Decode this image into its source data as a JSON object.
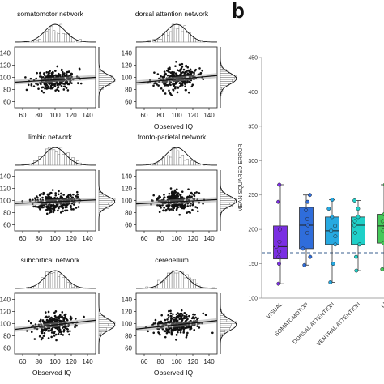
{
  "panel_b_letter": "b",
  "chart_data": [
    {
      "type": "scatter",
      "title": "somatomotor network",
      "xlabel": "",
      "xticks": [
        60,
        80,
        100,
        120,
        140
      ],
      "yticks": [
        60,
        80,
        100,
        120,
        140
      ],
      "xlim": [
        50,
        150
      ],
      "ylim": [
        50,
        150
      ],
      "fit": {
        "slope": 0.08,
        "intercept": 88
      },
      "center": [
        100,
        96
      ],
      "spread": [
        13,
        8
      ],
      "n": 260,
      "seed": 11
    },
    {
      "type": "scatter",
      "title": "dorsal attention network",
      "xlabel": "Observed IQ",
      "xticks": [
        60,
        80,
        100,
        120,
        140
      ],
      "yticks": [
        60,
        80,
        100,
        120,
        140
      ],
      "xlim": [
        50,
        150
      ],
      "ylim": [
        50,
        150
      ],
      "fit": {
        "slope": 0.12,
        "intercept": 85
      },
      "center": [
        100,
        98
      ],
      "spread": [
        13,
        9
      ],
      "n": 260,
      "seed": 23
    },
    {
      "type": "scatter",
      "title": "limbic network",
      "xlabel": "",
      "xticks": [
        60,
        80,
        100,
        120,
        140
      ],
      "yticks": [
        60,
        80,
        100,
        120,
        140
      ],
      "xlim": [
        50,
        150
      ],
      "ylim": [
        50,
        150
      ],
      "fit": {
        "slope": 0.06,
        "intercept": 92
      },
      "center": [
        100,
        98
      ],
      "spread": [
        13,
        8
      ],
      "n": 260,
      "seed": 37
    },
    {
      "type": "scatter",
      "title": "fronto-parietal network",
      "xlabel": "",
      "xticks": [
        60,
        80,
        100,
        120,
        140
      ],
      "yticks": [
        60,
        80,
        100,
        120,
        140
      ],
      "xlim": [
        50,
        150
      ],
      "ylim": [
        50,
        150
      ],
      "fit": {
        "slope": 0.07,
        "intercept": 91
      },
      "center": [
        100,
        99
      ],
      "spread": [
        13,
        8
      ],
      "n": 260,
      "seed": 41
    },
    {
      "type": "scatter",
      "title": "subcortical network",
      "xlabel": "Observed IQ",
      "xticks": [
        60,
        80,
        100,
        120,
        140
      ],
      "yticks": [
        60,
        80,
        100,
        120,
        140
      ],
      "xlim": [
        50,
        150
      ],
      "ylim": [
        50,
        150
      ],
      "fit": {
        "slope": 0.15,
        "intercept": 83
      },
      "center": [
        100,
        98
      ],
      "spread": [
        13,
        9
      ],
      "n": 260,
      "seed": 53
    },
    {
      "type": "scatter",
      "title": "cerebellum",
      "xlabel": "Observed IQ",
      "xticks": [
        60,
        80,
        100,
        120,
        140
      ],
      "yticks": [
        60,
        80,
        100,
        120,
        140
      ],
      "xlim": [
        50,
        150
      ],
      "ylim": [
        50,
        150
      ],
      "fit": {
        "slope": 0.14,
        "intercept": 84
      },
      "center": [
        100,
        98
      ],
      "spread": [
        13,
        9
      ],
      "n": 260,
      "seed": 67
    },
    {
      "type": "box",
      "ylabel": "MEAN SQUARED ERROR",
      "ylim": [
        100,
        450
      ],
      "yticks": [
        100,
        150,
        200,
        250,
        300,
        350,
        400,
        450
      ],
      "reference_line": 166,
      "categories": [
        "VISUAL",
        "SOMATOMOTOR",
        "DORSAL ATTENTION",
        "VENTRAL ATTENTION",
        "LI"
      ],
      "colors": [
        "#7b2fe3",
        "#2f6ddb",
        "#27a9e1",
        "#1fd0c8",
        "#45c95a"
      ],
      "boxes": [
        {
          "min": 121,
          "q1": 157,
          "median": 175,
          "q3": 205,
          "max": 265,
          "points": [
            121,
            150,
            160,
            168,
            175,
            182,
            200,
            240,
            265
          ]
        },
        {
          "min": 148,
          "q1": 172,
          "median": 206,
          "q3": 232,
          "max": 250,
          "points": [
            148,
            160,
            172,
            195,
            206,
            215,
            228,
            240,
            250
          ]
        },
        {
          "min": 123,
          "q1": 178,
          "median": 198,
          "q3": 218,
          "max": 243,
          "points": [
            123,
            150,
            178,
            190,
            198,
            205,
            218,
            230,
            243
          ]
        },
        {
          "min": 140,
          "q1": 178,
          "median": 206,
          "q3": 218,
          "max": 242,
          "points": [
            140,
            160,
            178,
            195,
            206,
            212,
            218,
            230,
            242
          ]
        },
        {
          "min": 142,
          "q1": 180,
          "median": 205,
          "q3": 222,
          "max": 265,
          "points": [
            142,
            165,
            180,
            198,
            205,
            212,
            222,
            245,
            265
          ]
        }
      ]
    }
  ]
}
